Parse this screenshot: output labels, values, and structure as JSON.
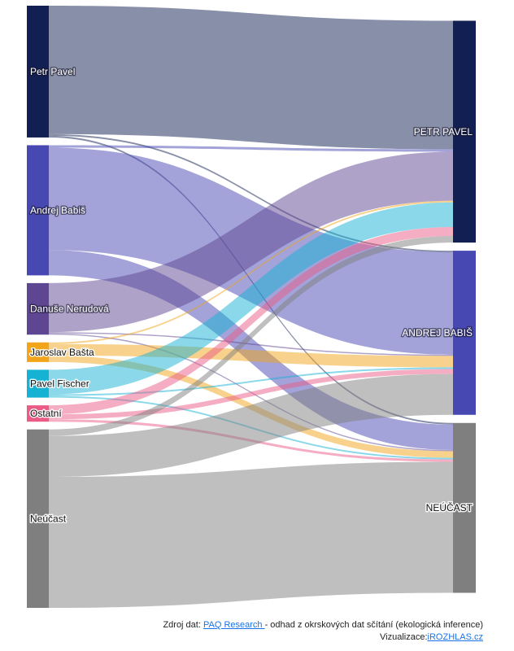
{
  "chart_data": {
    "type": "sankey",
    "title": "",
    "value_unit": "estimated relative voter share (read from band thickness)",
    "sources": [
      {
        "id": "pavel",
        "label": "Petr Pavel",
        "color": "#121f52",
        "label_style": "light"
      },
      {
        "id": "babis",
        "label": "Andrej Babiš",
        "color": "#4848b3",
        "label_style": "light"
      },
      {
        "id": "nerudova",
        "label": "Danuše Nerudová",
        "color": "#5f4692",
        "label_style": "light"
      },
      {
        "id": "basta",
        "label": "Jaroslav Bašta",
        "color": "#f2a51a",
        "label_style": "dark"
      },
      {
        "id": "fischer",
        "label": "Pavel Fischer",
        "color": "#15b2d3",
        "label_style": "dark"
      },
      {
        "id": "ostatni",
        "label": "Ostatní",
        "color": "#ea5b86",
        "label_style": "dark"
      },
      {
        "id": "neucast",
        "label": "Neúčast",
        "color": "#7f7f7f",
        "label_style": "dark"
      }
    ],
    "targets": [
      {
        "id": "t_pavel",
        "label": "PETR PAVEL",
        "color": "#121f52"
      },
      {
        "id": "t_babis",
        "label": "ANDREJ BABIŠ",
        "color": "#4848b3"
      },
      {
        "id": "t_neucast",
        "label": "NEÚČAST",
        "color": "#7f7f7f"
      }
    ],
    "links": [
      {
        "source": "pavel",
        "target": "t_pavel",
        "value": 157
      },
      {
        "source": "pavel",
        "target": "t_babis",
        "value": 2
      },
      {
        "source": "pavel",
        "target": "t_neucast",
        "value": 2
      },
      {
        "source": "babis",
        "target": "t_pavel",
        "value": 3
      },
      {
        "source": "babis",
        "target": "t_babis",
        "value": 125
      },
      {
        "source": "babis",
        "target": "t_neucast",
        "value": 31
      },
      {
        "source": "nerudova",
        "target": "t_pavel",
        "value": 60
      },
      {
        "source": "nerudova",
        "target": "t_babis",
        "value": 1.5
      },
      {
        "source": "nerudova",
        "target": "t_neucast",
        "value": 1.5
      },
      {
        "source": "basta",
        "target": "t_pavel",
        "value": 2
      },
      {
        "source": "basta",
        "target": "t_babis",
        "value": 14
      },
      {
        "source": "basta",
        "target": "t_neucast",
        "value": 8
      },
      {
        "source": "fischer",
        "target": "t_pavel",
        "value": 30
      },
      {
        "source": "fischer",
        "target": "t_babis",
        "value": 2
      },
      {
        "source": "fischer",
        "target": "t_neucast",
        "value": 2
      },
      {
        "source": "ostatni",
        "target": "t_pavel",
        "value": 11
      },
      {
        "source": "ostatni",
        "target": "t_babis",
        "value": 6
      },
      {
        "source": "ostatni",
        "target": "t_neucast",
        "value": 3
      },
      {
        "source": "neucast",
        "target": "t_pavel",
        "value": 8
      },
      {
        "source": "neucast",
        "target": "t_babis",
        "value": 50
      },
      {
        "source": "neucast",
        "target": "t_neucast",
        "value": 160
      }
    ],
    "link_opacity": 0.5
  },
  "footer": {
    "source_prefix": "Zdroj dat: ",
    "source_link": "PAQ Research ",
    "source_suffix": "- odhad z okrskových dat sčítání (ekologická inference)",
    "viz_prefix": "Vizualizace:",
    "viz_link": "iROZHLAS.cz"
  }
}
